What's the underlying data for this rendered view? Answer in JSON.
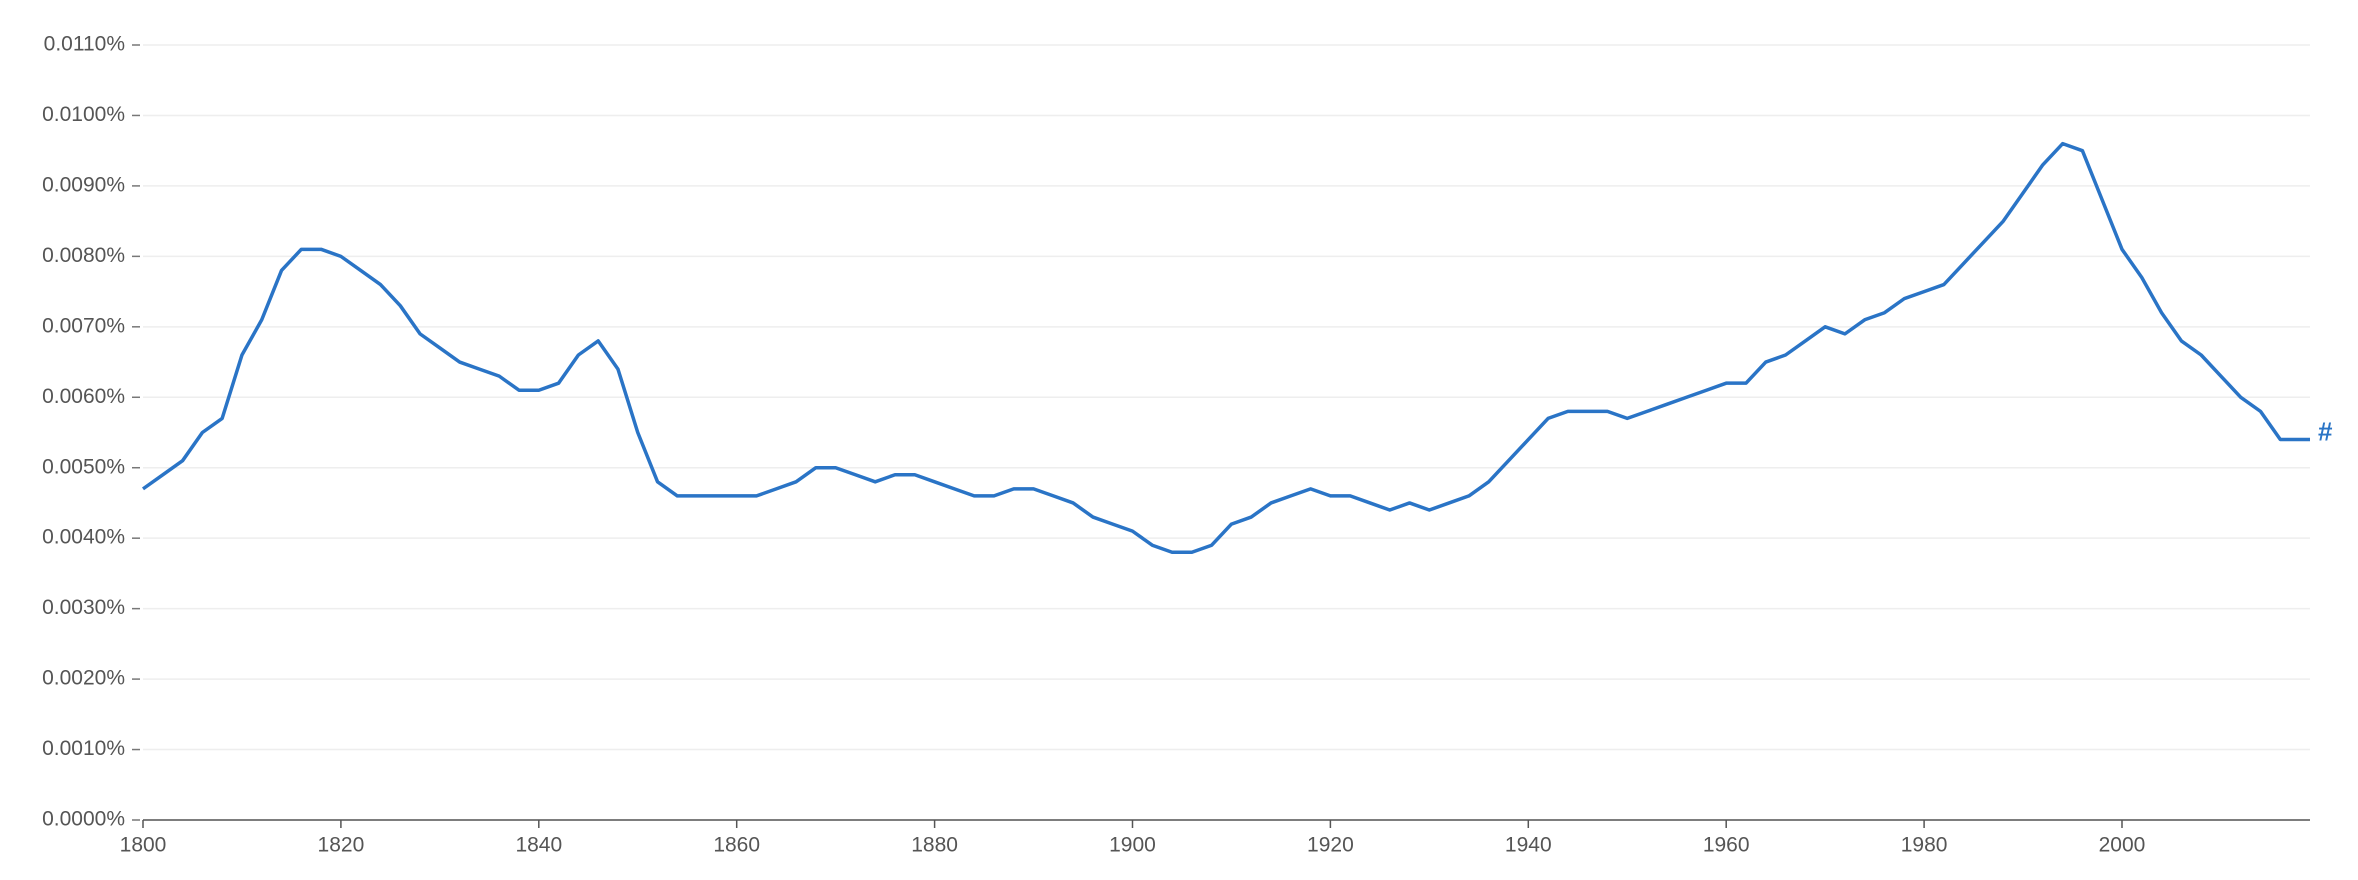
{
  "chart_data": {
    "type": "line",
    "x": [
      1800,
      1802,
      1804,
      1806,
      1808,
      1810,
      1812,
      1814,
      1816,
      1818,
      1820,
      1822,
      1824,
      1826,
      1828,
      1830,
      1832,
      1834,
      1836,
      1838,
      1840,
      1842,
      1844,
      1846,
      1848,
      1850,
      1852,
      1854,
      1856,
      1858,
      1860,
      1862,
      1864,
      1866,
      1868,
      1870,
      1872,
      1874,
      1876,
      1878,
      1880,
      1882,
      1884,
      1886,
      1888,
      1890,
      1892,
      1894,
      1896,
      1898,
      1900,
      1902,
      1904,
      1906,
      1908,
      1910,
      1912,
      1914,
      1916,
      1918,
      1920,
      1922,
      1924,
      1926,
      1928,
      1930,
      1932,
      1934,
      1936,
      1938,
      1940,
      1942,
      1944,
      1946,
      1948,
      1950,
      1952,
      1954,
      1956,
      1958,
      1960,
      1962,
      1964,
      1966,
      1968,
      1970,
      1972,
      1974,
      1976,
      1978,
      1980,
      1982,
      1984,
      1986,
      1988,
      1990,
      1992,
      1994,
      1996,
      1998,
      2000,
      2002,
      2004,
      2006,
      2008,
      2010,
      2012,
      2014,
      2016,
      2018,
      2019
    ],
    "series": [
      {
        "name": "#",
        "color": "#2a74c6",
        "values": [
          0.0047,
          0.0049,
          0.0051,
          0.0055,
          0.0057,
          0.0066,
          0.0071,
          0.0078,
          0.0081,
          0.0081,
          0.008,
          0.0078,
          0.0076,
          0.0073,
          0.0069,
          0.0067,
          0.0065,
          0.0064,
          0.0063,
          0.0061,
          0.0061,
          0.0062,
          0.0066,
          0.0068,
          0.0064,
          0.0055,
          0.0048,
          0.0046,
          0.0046,
          0.0046,
          0.0046,
          0.0046,
          0.0047,
          0.0048,
          0.005,
          0.005,
          0.0049,
          0.0048,
          0.0049,
          0.0049,
          0.0048,
          0.0047,
          0.0046,
          0.0046,
          0.0047,
          0.0047,
          0.0046,
          0.0045,
          0.0043,
          0.0042,
          0.0041,
          0.0039,
          0.0038,
          0.0038,
          0.0039,
          0.0042,
          0.0043,
          0.0045,
          0.0046,
          0.0047,
          0.0046,
          0.0046,
          0.0045,
          0.0044,
          0.0045,
          0.0044,
          0.0045,
          0.0046,
          0.0048,
          0.0051,
          0.0054,
          0.0057,
          0.0058,
          0.0058,
          0.0058,
          0.0057,
          0.0058,
          0.0059,
          0.006,
          0.0061,
          0.0062,
          0.0062,
          0.0065,
          0.0066,
          0.0068,
          0.007,
          0.0069,
          0.0071,
          0.0072,
          0.0074,
          0.0075,
          0.0076,
          0.0079,
          0.0082,
          0.0085,
          0.0089,
          0.0093,
          0.0096,
          0.0095,
          0.0088,
          0.0081,
          0.0077,
          0.0072,
          0.0068,
          0.0066,
          0.0063,
          0.006,
          0.0058,
          0.0054,
          0.0054,
          0.0054
        ]
      }
    ],
    "xlim": [
      1800,
      2019
    ],
    "xticks": [
      1800,
      1820,
      1840,
      1860,
      1880,
      1900,
      1920,
      1940,
      1960,
      1980,
      2000
    ],
    "ylim": [
      0,
      0.011
    ],
    "yticks": [
      {
        "value": 0,
        "label": "0.0000%"
      },
      {
        "value": 0.001,
        "label": "0.0010%"
      },
      {
        "value": 0.002,
        "label": "0.0020%"
      },
      {
        "value": 0.003,
        "label": "0.0030%"
      },
      {
        "value": 0.004,
        "label": "0.0040%"
      },
      {
        "value": 0.005,
        "label": "0.0050%"
      },
      {
        "value": 0.006,
        "label": "0.0060%"
      },
      {
        "value": 0.007,
        "label": "0.0070%"
      },
      {
        "value": 0.008,
        "label": "0.0080%"
      },
      {
        "value": 0.009,
        "label": "0.0090%"
      },
      {
        "value": 0.01,
        "label": "0.0100%"
      },
      {
        "value": 0.011,
        "label": "0.0110%"
      }
    ],
    "grid": true
  }
}
